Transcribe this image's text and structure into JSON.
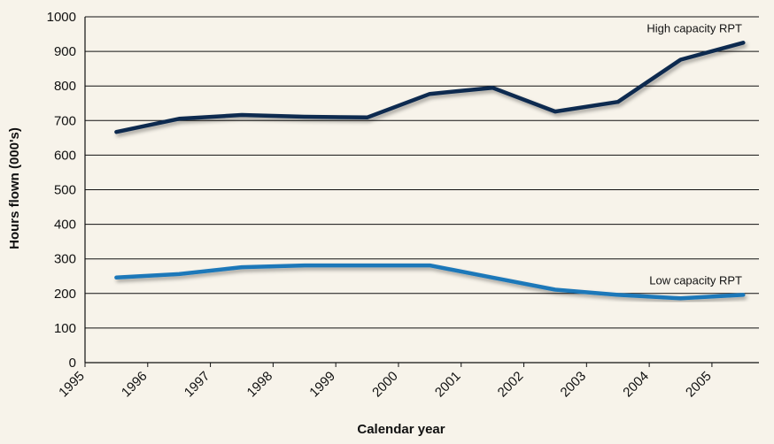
{
  "chart_data": {
    "type": "line",
    "xlabel": "Calendar year",
    "ylabel": "Hours flown (000's)",
    "ylim": [
      0,
      1000
    ],
    "y_ticks": [
      "0",
      "100",
      "200",
      "300",
      "400",
      "500",
      "600",
      "700",
      "800",
      "900",
      "1000"
    ],
    "x_ticks": [
      "1995",
      "1996",
      "1997",
      "1998",
      "1999",
      "2000",
      "2001",
      "2002",
      "2003",
      "2004",
      "2005"
    ],
    "grid": "horizontal",
    "x": [
      1995.5,
      1996.5,
      1997.5,
      1998.5,
      1999.5,
      2000.5,
      2001.5,
      2002.5,
      2003.5,
      2004.5,
      2005.5
    ],
    "series": [
      {
        "name": "High capacity RPT",
        "color": "#0d2a4f",
        "values": [
          667,
          705,
          716,
          711,
          709,
          777,
          795,
          726,
          754,
          876,
          925
        ]
      },
      {
        "name": "Low capacity RPT",
        "color": "#1f78b9",
        "values": [
          246,
          256,
          276,
          281,
          281,
          281,
          246,
          211,
          196,
          186,
          196
        ]
      }
    ]
  }
}
